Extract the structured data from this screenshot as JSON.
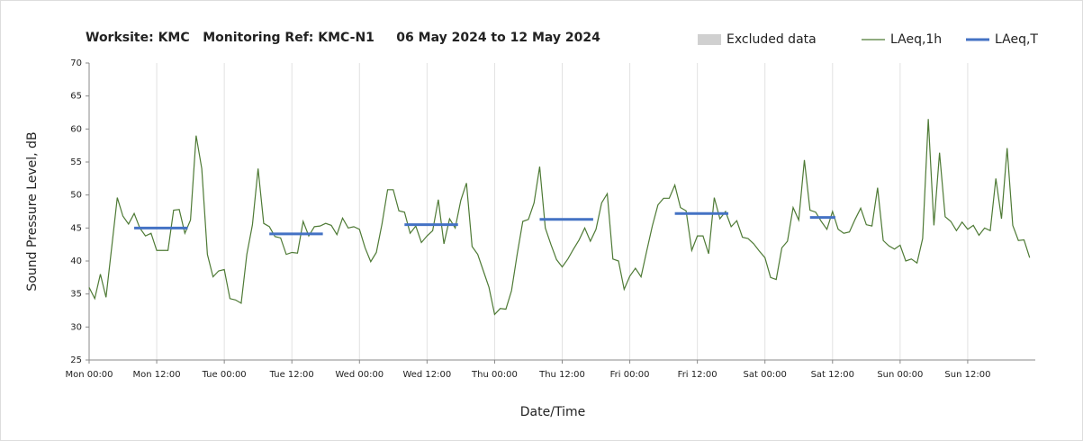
{
  "chart_data": {
    "type": "line",
    "title": "Worksite: KMC   Monitoring Ref: KMC-N1     06 May 2024 to 12 May 2024",
    "x_label": "Date/Time",
    "y_label": "Sound Pressure Level, dB",
    "xlim": [
      0,
      168
    ],
    "xticks": [
      {
        "value": 0,
        "label": "Mon 00:00"
      },
      {
        "value": 12,
        "label": "Mon 12:00"
      },
      {
        "value": 24,
        "label": "Tue 00:00"
      },
      {
        "value": 36,
        "label": "Tue 12:00"
      },
      {
        "value": 48,
        "label": "Wed 00:00"
      },
      {
        "value": 60,
        "label": "Wed 12:00"
      },
      {
        "value": 72,
        "label": "Thu 00:00"
      },
      {
        "value": 84,
        "label": "Thu 12:00"
      },
      {
        "value": 96,
        "label": "Fri 00:00"
      },
      {
        "value": 108,
        "label": "Fri 12:00"
      },
      {
        "value": 120,
        "label": "Sat 00:00"
      },
      {
        "value": 132,
        "label": "Sat 12:00"
      },
      {
        "value": 144,
        "label": "Sun 00:00"
      },
      {
        "value": 156,
        "label": "Sun 12:00"
      }
    ],
    "ylim": [
      25,
      70
    ],
    "yticks": [
      25,
      30,
      35,
      40,
      45,
      50,
      55,
      60,
      65,
      70
    ],
    "grid": "x",
    "legend": "top-right",
    "series": [
      {
        "name": "Excluded data",
        "color": "#d0d0d0",
        "x": [],
        "values": []
      },
      {
        "name": "LAeq,1h",
        "color": "#4e7a35",
        "x": [
          0,
          1,
          2,
          3,
          4,
          5,
          6,
          7,
          8,
          9,
          10,
          11,
          12,
          13,
          14,
          15,
          16,
          17,
          18,
          19,
          20,
          21,
          22,
          23,
          24,
          25,
          26,
          27,
          28,
          29,
          30,
          31,
          32,
          33,
          34,
          35,
          36,
          37,
          38,
          39,
          40,
          41,
          42,
          43,
          44,
          45,
          46,
          47,
          48,
          49,
          50,
          51,
          52,
          53,
          54,
          55,
          56,
          57,
          58,
          59,
          60,
          61,
          62,
          63,
          64,
          65,
          66,
          67,
          68,
          69,
          70,
          71,
          72,
          73,
          74,
          75,
          76,
          77,
          78,
          79,
          80,
          81,
          82,
          83,
          84,
          85,
          86,
          87,
          88,
          89,
          90,
          91,
          92,
          93,
          94,
          95,
          96,
          97,
          98,
          99,
          100,
          101,
          102,
          103,
          104,
          105,
          106,
          107,
          108,
          109,
          110,
          111,
          112,
          113,
          114,
          115,
          116,
          117,
          118,
          119,
          120,
          121,
          122,
          123,
          124,
          125,
          126,
          127,
          128,
          129,
          130,
          131,
          132,
          133,
          134,
          135,
          136,
          137,
          138,
          139,
          140,
          141,
          142,
          143,
          144,
          145,
          146,
          147,
          148,
          149,
          150,
          151,
          152,
          153,
          154,
          155,
          156,
          157,
          158,
          159,
          160,
          161,
          162,
          163,
          164,
          165,
          166,
          167
        ],
        "values": [
          36,
          34.3,
          38,
          34.5,
          42,
          49.6,
          46.8,
          45.6,
          47.2,
          45,
          43.8,
          44.2,
          41.6,
          41.6,
          41.6,
          47.7,
          47.8,
          44.2,
          46.2,
          59,
          54,
          41,
          37.6,
          38.5,
          38.7,
          34.3,
          34.1,
          33.6,
          41,
          45.5,
          54,
          45.7,
          45.2,
          43.7,
          43.5,
          41,
          41.3,
          41.2,
          46,
          43.8,
          45.2,
          45.3,
          45.7,
          45.4,
          44,
          46.5,
          45,
          45.2,
          44.8,
          42,
          39.9,
          41.3,
          45.6,
          50.8,
          50.8,
          47.6,
          47.4,
          44.2,
          45.3,
          42.8,
          43.8,
          44.6,
          49.3,
          42.6,
          46.4,
          45,
          49.2,
          51.8,
          42.2,
          41,
          38.5,
          36,
          31.9,
          32.8,
          32.7,
          35.5,
          41,
          46,
          46.3,
          48.8,
          54.3,
          45,
          42.5,
          40.2,
          39.1,
          40.3,
          41.8,
          43.2,
          45,
          43,
          44.8,
          48.8,
          50.2,
          40.3,
          40,
          35.7,
          37.7,
          38.9,
          37.6,
          41.5,
          45.3,
          48.5,
          49.5,
          49.5,
          51.5,
          48.1,
          47.6,
          41.6,
          43.8,
          43.8,
          41.1,
          49.6,
          46.4,
          47.5,
          45.2,
          46.1,
          43.6,
          43.4,
          42.6,
          41.5,
          40.5,
          37.5,
          37.2,
          42,
          43,
          48.1,
          46.2,
          55.3,
          47.7,
          47.4,
          46,
          44.8,
          47.5,
          44.8,
          44.2,
          44.4,
          46.3,
          48,
          45.5,
          45.3,
          51.1,
          43.1,
          42.3,
          41.8,
          42.4,
          40,
          40.3,
          39.7,
          43.4,
          61.5,
          45.4,
          56.4,
          46.7,
          46,
          44.6,
          45.9,
          44.8,
          45.4,
          43.9,
          45,
          44.6,
          52.5,
          46.4,
          57.1,
          45.4,
          43.1,
          43.2,
          40.5
        ]
      },
      {
        "name": "LAeq,T",
        "color": "#4472c4",
        "x": [
          8,
          17.5,
          32,
          41.5,
          56,
          65.5,
          80,
          89.5,
          104,
          113.5,
          128,
          132.5
        ],
        "values": [
          45,
          45,
          44.1,
          44.1,
          45.5,
          45.5,
          46.3,
          46.3,
          47.2,
          47.2,
          46.6,
          46.6
        ]
      }
    ]
  }
}
